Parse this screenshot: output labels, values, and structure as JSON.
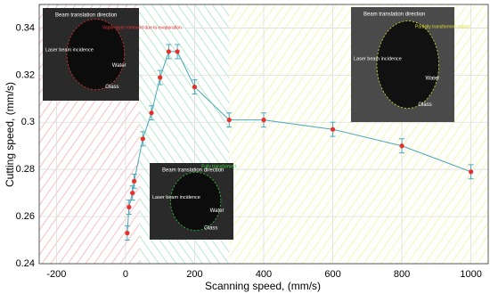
{
  "chart_data": {
    "type": "line",
    "x_label": "Scanning speed, (mm/s)",
    "y_label": "Cutting speed, (mm/s)",
    "xlim": [
      -250,
      1050
    ],
    "ylim": [
      0.24,
      0.35
    ],
    "xticks": [
      -200,
      0,
      200,
      400,
      600,
      800,
      1000
    ],
    "yticks": [
      0.24,
      0.26,
      0.28,
      0.3,
      0.32,
      0.34
    ],
    "grid": true,
    "regions": [
      {
        "x": [
          -250,
          40
        ],
        "color": "#f4a0a0"
      },
      {
        "x": [
          40,
          300
        ],
        "color": "#8fe0b0"
      },
      {
        "x": [
          300,
          1050
        ],
        "color": "#f0f08a"
      }
    ],
    "series": [
      {
        "color": "#4aa8b8",
        "marker_color": "#e8302a",
        "x": [
          5,
          10,
          20,
          25,
          50,
          75,
          100,
          125,
          150,
          200,
          300,
          400,
          600,
          800,
          1000
        ],
        "values": [
          0.253,
          0.264,
          0.27,
          0.275,
          0.293,
          0.304,
          0.319,
          0.33,
          0.33,
          0.315,
          0.301,
          0.301,
          0.297,
          0.29,
          0.279
        ],
        "errors": [
          0.003,
          0.003,
          0.003,
          0.003,
          0.003,
          0.003,
          0.003,
          0.003,
          0.003,
          0.003,
          0.003,
          0.003,
          0.003,
          0.003,
          0.003
        ]
      }
    ],
    "insets": [
      {
        "direction": "Beam translation direction",
        "note": "Vapor layer removed due to evaporation",
        "beam": "Laser beam incidence",
        "water": "Water",
        "glass": "Glass"
      },
      {
        "direction": "Beam translation direction",
        "note": "Fully transformed",
        "beam": "Laser beam incidence",
        "water": "Water",
        "glass": "Glass"
      },
      {
        "direction": "Beam translation direction",
        "note": "Partially transformed region",
        "beam": "Laser beam incidence",
        "water": "Water",
        "glass": "Glass"
      }
    ]
  }
}
